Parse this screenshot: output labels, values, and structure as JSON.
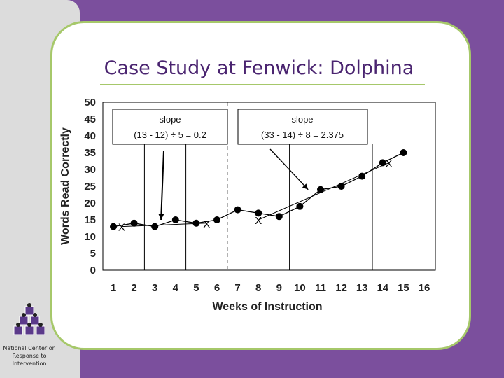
{
  "slide": {
    "title": "Case Study at Fenwick: Dolphina",
    "organization": "National Center on Response to Intervention",
    "colors": {
      "frame": "#7b4f9d",
      "title": "#4a2470",
      "card_border": "#a6c86a",
      "panel": "#dcdcdc"
    }
  },
  "chart_data": {
    "type": "line",
    "title": "",
    "xlabel": "Weeks of Instruction",
    "ylabel": "Words Read Correctly",
    "xlim": [
      1,
      16
    ],
    "ylim": [
      0,
      50
    ],
    "x_ticks": [
      "1",
      "2",
      "3",
      "4",
      "5",
      "6",
      "7",
      "8",
      "9",
      "10",
      "11",
      "12",
      "13",
      "14",
      "15",
      "16"
    ],
    "y_ticks": [
      "0",
      "5",
      "10",
      "15",
      "20",
      "25",
      "30",
      "35",
      "40",
      "45",
      "50"
    ],
    "grid": false,
    "series": [
      {
        "name": "",
        "x": [
          1,
          2,
          3,
          4,
          5,
          6,
          7,
          8,
          9,
          10,
          11,
          12,
          13,
          14,
          15
        ],
        "y": [
          13,
          14,
          13,
          15,
          14,
          15,
          18,
          17,
          16,
          19,
          24,
          25,
          28,
          32,
          35
        ]
      }
    ],
    "phase_lines": [
      {
        "x": 2.5,
        "style": "solid"
      },
      {
        "x": 4.5,
        "style": "solid"
      },
      {
        "x": 6.5,
        "style": "dashed"
      },
      {
        "x": 9.5,
        "style": "solid"
      },
      {
        "x": 13.5,
        "style": "solid"
      }
    ],
    "x_markers": [
      {
        "x": 1.4,
        "y": 13,
        "label": "X"
      },
      {
        "x": 5.5,
        "y": 14,
        "label": "X"
      },
      {
        "x": 8.0,
        "y": 15,
        "label": "X"
      },
      {
        "x": 14.3,
        "y": 32,
        "label": "X"
      }
    ],
    "trend_lines": [
      {
        "x1": 1.4,
        "y1": 13,
        "x2": 5.5,
        "y2": 14
      },
      {
        "x1": 8.0,
        "y1": 15,
        "x2": 14.3,
        "y2": 32
      }
    ],
    "annotations": [
      {
        "title": "slope",
        "formula": "(13 - 12) ÷ 5 = 0.2",
        "arrow_to": [
          3.3,
          15
        ]
      },
      {
        "title": "slope",
        "formula": "(33 - 14) ÷ 8 = 2.375",
        "arrow_to": [
          10.4,
          24
        ]
      }
    ]
  }
}
